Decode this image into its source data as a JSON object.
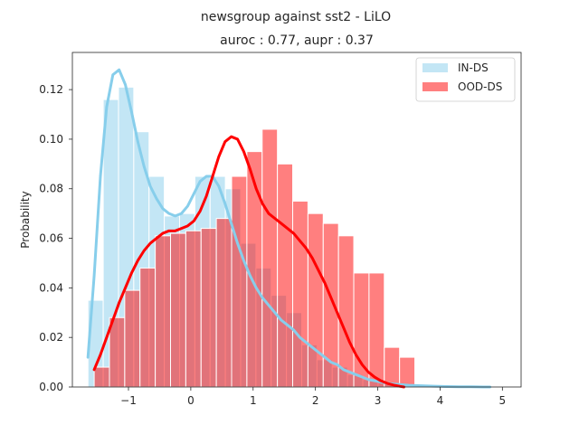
{
  "figure": {
    "suptitle": "newsgroup against sst2  - LiLO",
    "title": "auroc : 0.77, aupr : 0.37"
  },
  "chart_data": {
    "type": "histogram",
    "title": "auroc : 0.77, aupr : 0.37",
    "suptitle": "newsgroup against sst2  - LiLO",
    "xlabel": "",
    "ylabel": "Probability",
    "xlim": [
      -1.9,
      5.3
    ],
    "ylim": [
      0,
      0.135
    ],
    "xticks": [
      -1,
      0,
      1,
      2,
      3,
      4,
      5
    ],
    "yticks": [
      0.0,
      0.02,
      0.04,
      0.06,
      0.08,
      0.1,
      0.12
    ],
    "ytick_labels": [
      "0.00",
      "0.02",
      "0.04",
      "0.06",
      "0.08",
      "0.10",
      "0.12"
    ],
    "xtick_labels": [
      "−1",
      "0",
      "1",
      "2",
      "3",
      "4",
      "5"
    ],
    "grid": false,
    "legend": {
      "position": "top-right"
    },
    "series": [
      {
        "name": "IN-DS",
        "color": "#87ceeb",
        "bin_start": -1.65,
        "bin_width": 0.245,
        "values": [
          0.035,
          0.116,
          0.121,
          0.103,
          0.085,
          0.069,
          0.07,
          0.085,
          0.085,
          0.08,
          0.058,
          0.048,
          0.037,
          0.03,
          0.017,
          0.011,
          0.008,
          0.005,
          0.003,
          0.002,
          0.001,
          0.0,
          0.0,
          0.0,
          0.0,
          0.0,
          0.0,
          0.0
        ],
        "kde_x": [
          -1.65,
          -1.55,
          -1.45,
          -1.35,
          -1.25,
          -1.15,
          -1.05,
          -0.95,
          -0.85,
          -0.75,
          -0.65,
          -0.55,
          -0.45,
          -0.35,
          -0.25,
          -0.15,
          -0.05,
          0.05,
          0.15,
          0.25,
          0.35,
          0.45,
          0.55,
          0.65,
          0.75,
          0.85,
          0.95,
          1.05,
          1.15,
          1.25,
          1.35,
          1.45,
          1.55,
          1.65,
          1.75,
          1.85,
          1.95,
          2.05,
          2.15,
          2.25,
          2.35,
          2.45,
          2.55,
          2.65,
          2.75,
          2.85,
          2.95,
          3.05,
          3.15,
          3.25,
          3.35,
          3.5,
          3.7,
          3.9,
          4.1,
          4.3,
          4.5,
          4.7,
          4.8
        ],
        "kde_y": [
          0.012,
          0.045,
          0.085,
          0.113,
          0.126,
          0.128,
          0.122,
          0.111,
          0.099,
          0.089,
          0.081,
          0.076,
          0.072,
          0.07,
          0.069,
          0.07,
          0.073,
          0.078,
          0.083,
          0.085,
          0.085,
          0.081,
          0.074,
          0.066,
          0.058,
          0.051,
          0.045,
          0.04,
          0.036,
          0.033,
          0.03,
          0.027,
          0.025,
          0.023,
          0.02,
          0.018,
          0.016,
          0.014,
          0.012,
          0.01,
          0.009,
          0.007,
          0.006,
          0.005,
          0.004,
          0.003,
          0.0025,
          0.002,
          0.0015,
          0.0012,
          0.001,
          0.0007,
          0.0005,
          0.0003,
          0.0002,
          0.0001,
          0.0001,
          0.0,
          0.0
        ]
      },
      {
        "name": "OOD-DS",
        "color": "#ff0000",
        "bin_start": -1.55,
        "bin_width": 0.245,
        "values": [
          0.008,
          0.028,
          0.039,
          0.048,
          0.061,
          0.062,
          0.063,
          0.064,
          0.068,
          0.085,
          0.095,
          0.104,
          0.09,
          0.075,
          0.07,
          0.066,
          0.061,
          0.046,
          0.046,
          0.016,
          0.012
        ],
        "kde_x": [
          -1.55,
          -1.45,
          -1.35,
          -1.25,
          -1.15,
          -1.05,
          -0.95,
          -0.85,
          -0.75,
          -0.65,
          -0.55,
          -0.45,
          -0.35,
          -0.25,
          -0.15,
          -0.05,
          0.05,
          0.15,
          0.25,
          0.35,
          0.45,
          0.55,
          0.65,
          0.75,
          0.85,
          0.95,
          1.05,
          1.15,
          1.25,
          1.35,
          1.45,
          1.55,
          1.65,
          1.75,
          1.85,
          1.95,
          2.05,
          2.15,
          2.25,
          2.35,
          2.45,
          2.55,
          2.65,
          2.75,
          2.85,
          2.95,
          3.05,
          3.15,
          3.25,
          3.35,
          3.42
        ],
        "kde_y": [
          0.007,
          0.013,
          0.02,
          0.027,
          0.034,
          0.04,
          0.046,
          0.051,
          0.055,
          0.058,
          0.06,
          0.062,
          0.063,
          0.063,
          0.064,
          0.065,
          0.067,
          0.071,
          0.077,
          0.085,
          0.093,
          0.099,
          0.101,
          0.1,
          0.095,
          0.088,
          0.08,
          0.074,
          0.07,
          0.068,
          0.066,
          0.064,
          0.062,
          0.059,
          0.056,
          0.052,
          0.047,
          0.042,
          0.036,
          0.03,
          0.024,
          0.018,
          0.013,
          0.009,
          0.006,
          0.004,
          0.0025,
          0.0015,
          0.0008,
          0.0003,
          0.0
        ]
      }
    ]
  }
}
